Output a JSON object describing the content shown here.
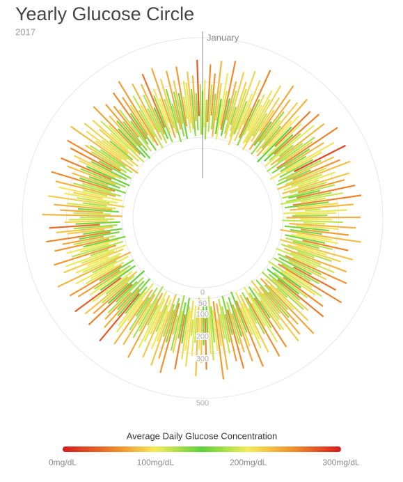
{
  "chart_data": {
    "type": "radial-range",
    "title": "Yearly Glucose Circle",
    "subtitle": "2017",
    "annotation": "January",
    "colorbar_title": "Average Daily Glucose Concentration",
    "rlim": [
      0,
      500
    ],
    "rticks": [
      0,
      50,
      100,
      200,
      300,
      500
    ],
    "clim": [
      0,
      300
    ],
    "cticks": [
      {
        "value": 0,
        "label": "0mg/dL"
      },
      {
        "value": 100,
        "label": "100mg/dL"
      },
      {
        "value": 200,
        "label": "200mg/dL"
      },
      {
        "value": 300,
        "label": "300mg/dL"
      }
    ],
    "colorscale": [
      [
        0,
        "#d7191c"
      ],
      [
        60,
        "#f08c2c"
      ],
      [
        100,
        "#f4ec5a"
      ],
      [
        150,
        "#5cd13a"
      ],
      [
        200,
        "#f4ec5a"
      ],
      [
        250,
        "#f08c2c"
      ],
      [
        300,
        "#d7191c"
      ]
    ],
    "grid": true,
    "low": [
      60,
      95,
      40,
      120,
      75,
      150,
      88,
      55,
      130,
      70,
      45,
      110,
      92,
      66,
      140,
      80,
      58,
      125,
      100,
      72,
      35,
      90,
      115,
      62,
      145,
      84,
      50,
      105,
      130,
      68,
      78,
      42,
      120,
      95,
      155,
      60,
      88,
      112,
      48,
      135,
      70,
      100,
      58,
      125,
      82,
      40,
      145,
      92,
      65,
      118,
      85,
      52,
      130,
      76,
      108,
      44,
      138,
      90,
      60,
      122,
      95,
      38,
      115,
      80,
      150,
      66,
      102,
      54,
      128,
      88,
      48,
      112,
      74,
      140,
      62,
      96,
      132,
      56,
      84,
      120,
      70,
      44,
      136,
      98,
      60,
      116,
      82,
      150,
      52,
      104,
      90,
      64,
      126,
      46,
      142,
      78,
      110,
      58,
      132,
      86,
      40,
      118,
      94,
      66,
      148,
      72,
      106,
      50,
      124,
      88,
      60,
      140,
      80,
      112,
      46,
      130,
      96,
      62,
      120,
      74,
      152,
      54,
      100,
      86,
      128,
      42,
      114,
      70,
      138,
      92,
      58,
      124,
      78,
      104,
      48,
      146,
      82,
      118,
      64,
      98,
      134,
      56,
      90,
      122,
      44,
      108,
      76,
      140,
      60,
      116,
      84,
      50,
      130,
      96,
      66,
      144,
      72,
      110,
      54,
      126,
      88,
      42,
      120,
      100,
      62,
      136,
      80,
      114,
      48,
      132,
      94,
      58,
      126,
      76,
      150,
      64,
      104,
      86,
      40,
      118,
      72,
      138,
      56,
      98,
      124,
      46,
      112,
      82,
      146,
      60,
      106,
      90,
      52,
      128,
      74,
      116,
      44,
      140,
      84,
      62,
      120,
      96,
      50,
      134,
      78,
      110,
      66,
      148,
      88,
      54,
      126,
      70,
      102,
      42,
      136,
      92,
      60,
      118,
      80,
      144,
      56,
      108,
      86,
      130,
      48,
      114,
      74,
      152,
      64,
      98,
      122,
      40,
      132,
      90,
      68,
      116,
      84,
      142,
      58,
      104,
      76,
      128,
      50,
      110,
      94,
      138,
      62,
      120,
      46,
      100,
      86,
      146,
      70,
      112,
      54,
      134,
      96,
      60,
      124,
      78,
      44,
      118,
      88,
      140,
      66,
      106,
      52,
      130,
      92,
      72,
      150,
      58,
      114,
      84,
      126,
      48,
      102,
      136,
      64,
      96,
      80,
      122,
      42,
      110,
      74,
      144,
      56,
      128,
      90,
      68,
      116,
      100,
      50,
      138,
      82,
      106,
      60,
      132,
      46,
      120,
      94,
      70,
      148,
      54,
      112,
      86,
      124,
      64,
      104,
      40,
      136,
      78,
      118,
      58,
      96,
      130,
      72,
      142,
      52,
      108,
      88,
      62,
      126,
      44,
      114,
      80,
      150,
      66,
      100,
      122,
      56,
      134,
      92,
      70,
      110,
      48,
      140,
      84,
      118,
      60,
      102,
      76,
      128,
      54,
      96,
      144,
      68,
      112,
      86,
      42,
      130,
      98,
      64,
      120,
      50,
      106,
      138,
      74,
      116,
      90,
      58,
      124,
      82,
      146,
      62
    ],
    "high": [
      260,
      310,
      220,
      380,
      290,
      340,
      250,
      400,
      300,
      230,
      350,
      270,
      410,
      240,
      320,
      280,
      370,
      210,
      330,
      300,
      390,
      250,
      290,
      360,
      230,
      420,
      280,
      310,
      260,
      340,
      300,
      380,
      240,
      330,
      270,
      410,
      220,
      350,
      290,
      250,
      360,
      230,
      400,
      280,
      320,
      260,
      370,
      300,
      240,
      390,
      270,
      340,
      210,
      380,
      250,
      310,
      290,
      420,
      260,
      330,
      230,
      370,
      300,
      250,
      410,
      280,
      340,
      220,
      360,
      290,
      400,
      260,
      320,
      240,
      380,
      270,
      350,
      300,
      230,
      390,
      280,
      330,
      250,
      410,
      260,
      300,
      370,
      220,
      340,
      290,
      250,
      400,
      270,
      320,
      240,
      380,
      300,
      260,
      350,
      230,
      410,
      280,
      310,
      250,
      360,
      290,
      230,
      390,
      270,
      340,
      300,
      220,
      380,
      260,
      330,
      250,
      400,
      280,
      310,
      240,
      370,
      290,
      250,
      420,
      270,
      330,
      300,
      230,
      360,
      280,
      240,
      390,
      260,
      320,
      300,
      210,
      350,
      270,
      410,
      250,
      330,
      280,
      370,
      240,
      390,
      260,
      310,
      300,
      230,
      380,
      270,
      340,
      250,
      400,
      280,
      220,
      360,
      290,
      330,
      260,
      410,
      240,
      300,
      370,
      250,
      320,
      280,
      390,
      230,
      350,
      260,
      310,
      240,
      380,
      270,
      420,
      290,
      250,
      330,
      300,
      230,
      370,
      260,
      340,
      280,
      400,
      250,
      310,
      220,
      360,
      290,
      330,
      260,
      380,
      240,
      310,
      300,
      230,
      410,
      270,
      350,
      250,
      390,
      280,
      320,
      240,
      370,
      260,
      300,
      340,
      230,
      400,
      270,
      310,
      250,
      360,
      290,
      220,
      380,
      260,
      330,
      300,
      240,
      410,
      270,
      350,
      250,
      320,
      290,
      230,
      390,
      260,
      340,
      280,
      370,
      240,
      310,
      400,
      250,
      300,
      270,
      350,
      230,
      380,
      290,
      260,
      330,
      240,
      410,
      280,
      310,
      250,
      360,
      270,
      340,
      220,
      390,
      300,
      260,
      320,
      240,
      370,
      280,
      330,
      250,
      400,
      230,
      300,
      350,
      270,
      380,
      260,
      310,
      290,
      240,
      410,
      270,
      330,
      250,
      360,
      300,
      230,
      390,
      260,
      320,
      280,
      350,
      240,
      370,
      290,
      250,
      400,
      270,
      310,
      230,
      340,
      280,
      380,
      260,
      300,
      330,
      250,
      360,
      220,
      390,
      270,
      310,
      290,
      240,
      410,
      280,
      340,
      260,
      370,
      230,
      300,
      350,
      250,
      320,
      280,
      390,
      240,
      310,
      270,
      360,
      250,
      330,
      300,
      230,
      380,
      260,
      340,
      290,
      410,
      250,
      320,
      270,
      370,
      240,
      300,
      350,
      230,
      390,
      280,
      310,
      260,
      400,
      250,
      340,
      290,
      220,
      370,
      270,
      320,
      260,
      380,
      240,
      310,
      300,
      350,
      270,
      330,
      250,
      400,
      290
    ]
  }
}
